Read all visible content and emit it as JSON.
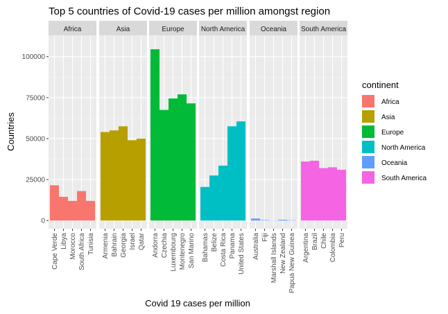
{
  "chart_data": {
    "type": "bar",
    "title": "Top 5 countries of Covid-19 cases per million amongst region",
    "xlabel": "Covid 19 cases per million",
    "ylabel": "Countries",
    "ylim": [
      -5000,
      113000
    ],
    "yticks": [
      0,
      25000,
      50000,
      75000,
      100000
    ],
    "ytick_labels": [
      "0",
      "25000",
      "50000",
      "75000",
      "100000"
    ],
    "grid": true,
    "legend": {
      "title": "continent",
      "placement": "right",
      "entries": [
        "Africa",
        "Asia",
        "Europe",
        "North America",
        "Oceania",
        "South America"
      ]
    },
    "colors": {
      "Africa": "#F8766D",
      "Asia": "#B79F00",
      "Europe": "#00BA38",
      "North America": "#00BFC4",
      "Oceania": "#619CFF",
      "South America": "#F564E3",
      "panel_background": "#EBEBEB",
      "strip_background": "#D9D9D9"
    },
    "facets": [
      {
        "name": "Africa",
        "categories": [
          "Cape Verde",
          "Libya",
          "Morocco",
          "South Africa",
          "Tunisia"
        ],
        "values": [
          21500,
          14500,
          12000,
          18000,
          12000
        ]
      },
      {
        "name": "Asia",
        "categories": [
          "Armenia",
          "Bahrain",
          "Georgia",
          "Israel",
          "Qatar"
        ],
        "values": [
          54000,
          55000,
          57500,
          49000,
          50000
        ]
      },
      {
        "name": "Europe",
        "categories": [
          "Andorra",
          "Czechia",
          "Luxembourg",
          "Montenegro",
          "San Marino"
        ],
        "values": [
          104500,
          67500,
          74500,
          77000,
          71500
        ]
      },
      {
        "name": "North America",
        "categories": [
          "Bahamas",
          "Belize",
          "Costa Rica",
          "Panama",
          "United States"
        ],
        "values": [
          20500,
          27500,
          33500,
          57500,
          60500
        ]
      },
      {
        "name": "Oceania",
        "categories": [
          "Australia",
          "Fiji",
          "Marshall Islands",
          "New Zealand",
          "Papua New Guinea"
        ],
        "values": [
          1200,
          300,
          100,
          500,
          200
        ]
      },
      {
        "name": "South America",
        "categories": [
          "Argentina",
          "Brazil",
          "Chile",
          "Colombia",
          "Peru"
        ],
        "values": [
          36000,
          36500,
          32000,
          32500,
          31000
        ]
      }
    ]
  }
}
